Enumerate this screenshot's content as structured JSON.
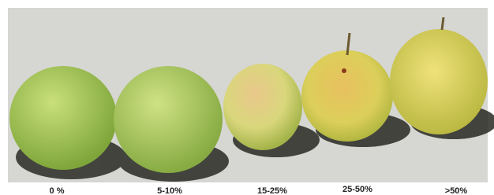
{
  "labels": [
    "0 %",
    "5-10%",
    "15-25%",
    "25-50%",
    ">50%"
  ]
}
